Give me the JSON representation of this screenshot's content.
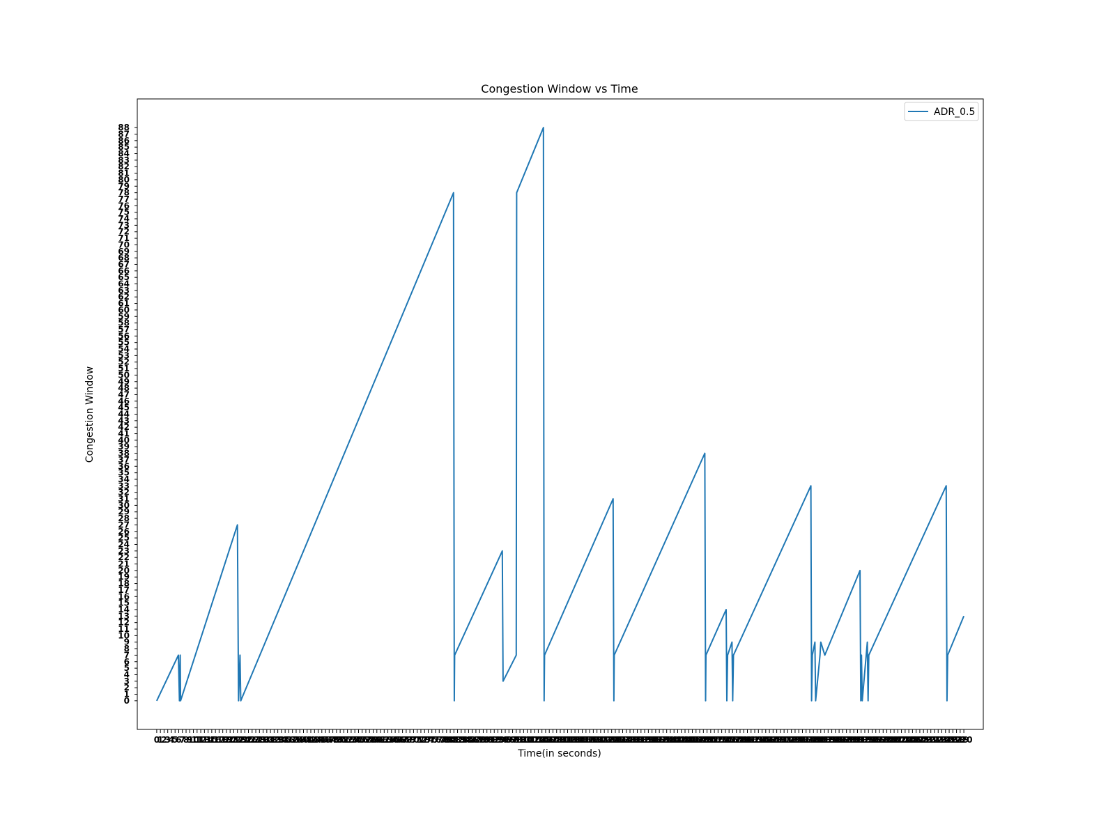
{
  "chart_data": {
    "type": "line",
    "title": "Congestion Window vs Time",
    "xlabel": "Time(in seconds)",
    "ylabel": "Congestion Window",
    "grid": false,
    "legend": {
      "placement": "top-right"
    },
    "series": [
      {
        "name": "ADR_0.5",
        "color": "#1f77b4",
        "x": [
          0,
          5.9,
          6.2,
          6.4,
          6.5,
          22.0,
          22.3,
          22.7,
          22.9,
          80.9,
          81.1,
          81.2,
          94.2,
          94.4,
          98.0,
          98.1,
          105.4,
          105.6,
          105.7,
          124.4,
          124.6,
          124.7,
          149.4,
          149.6,
          149.7,
          155.2,
          155.4,
          155.6,
          156.8,
          157.0,
          157.2,
          178.3,
          178.5,
          178.7,
          179.4,
          179.6,
          180.8,
          181.0,
          182.1,
          191.7,
          191.9,
          192.1,
          192.3,
          193.7,
          193.9,
          194.1,
          215.2,
          215.4,
          215.6,
          220.0
        ],
        "y": [
          0,
          7,
          0,
          7,
          0,
          27,
          0,
          7,
          0,
          78,
          0,
          7,
          23,
          3,
          7,
          78,
          88,
          0,
          7,
          31,
          0,
          7,
          38,
          0,
          7,
          14,
          0,
          7,
          9,
          0,
          7,
          33,
          0,
          7,
          9,
          0,
          7,
          9,
          7,
          20,
          0,
          7,
          0,
          9,
          0,
          7,
          33,
          0,
          7,
          13
        ]
      }
    ],
    "xlim": [
      -5.3,
      225.3
    ],
    "ylim": [
      -4.4,
      92.4
    ],
    "xticks_count": 220,
    "yticks_count": 88
  }
}
